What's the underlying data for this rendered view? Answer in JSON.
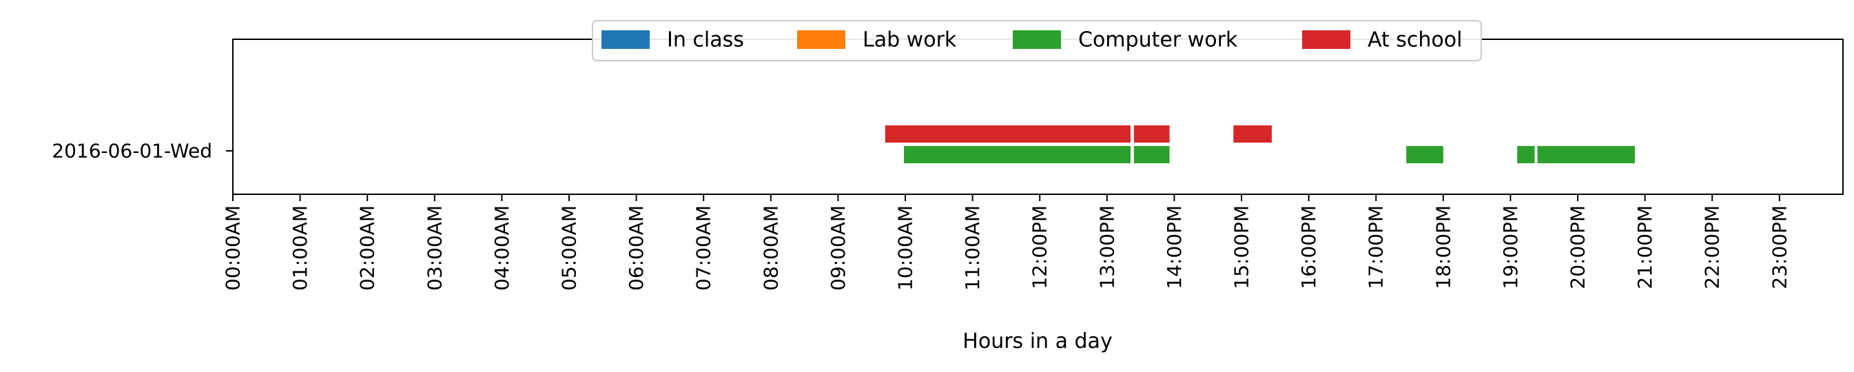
{
  "chart_data": {
    "type": "timeline",
    "xlabel": "Hours in a day",
    "ylabel": "",
    "xlim": [
      0,
      24
    ],
    "grid": false,
    "legend_placement": "top-center",
    "categories": [
      "2016-06-01-Wed"
    ],
    "x_tick_labels": [
      "00:00AM",
      "01:00AM",
      "02:00AM",
      "03:00AM",
      "04:00AM",
      "05:00AM",
      "06:00AM",
      "07:00AM",
      "08:00AM",
      "09:00AM",
      "10:00AM",
      "11:00AM",
      "12:00PM",
      "13:00PM",
      "14:00PM",
      "15:00PM",
      "16:00PM",
      "17:00PM",
      "18:00PM",
      "19:00PM",
      "20:00PM",
      "21:00PM",
      "22:00PM",
      "23:00PM"
    ],
    "series": [
      {
        "name": "In class",
        "color": "#1f77b4",
        "segments": []
      },
      {
        "name": "Lab work",
        "color": "#ff7f0e",
        "segments": []
      },
      {
        "name": "Computer work",
        "color": "#2ca02c",
        "segments": [
          {
            "category": "2016-06-01-Wed",
            "start": 9.98,
            "end": 13.35
          },
          {
            "category": "2016-06-01-Wed",
            "start": 13.4,
            "end": 13.93
          },
          {
            "category": "2016-06-01-Wed",
            "start": 17.45,
            "end": 18.0
          },
          {
            "category": "2016-06-01-Wed",
            "start": 19.1,
            "end": 19.36
          },
          {
            "category": "2016-06-01-Wed",
            "start": 19.4,
            "end": 20.85
          }
        ]
      },
      {
        "name": "At school",
        "color": "#d62728",
        "segments": [
          {
            "category": "2016-06-01-Wed",
            "start": 9.7,
            "end": 13.35
          },
          {
            "category": "2016-06-01-Wed",
            "start": 13.4,
            "end": 13.93
          },
          {
            "category": "2016-06-01-Wed",
            "start": 14.88,
            "end": 15.45
          }
        ]
      }
    ]
  }
}
